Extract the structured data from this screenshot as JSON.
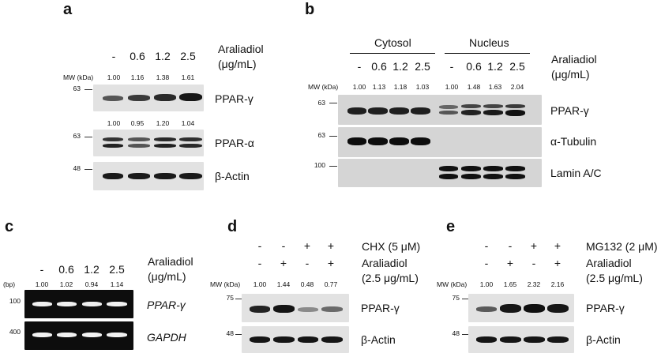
{
  "panels": {
    "a": {
      "label": "a",
      "lanes": [
        "-",
        "0.6",
        "1.2",
        "2.5"
      ],
      "treatment": [
        "Araliadiol",
        "(μg/mL)"
      ],
      "mw_header": "MW (kDa)",
      "blots": [
        {
          "name": "PPAR-γ",
          "mw": "63",
          "quant": [
            "1.00",
            "1.16",
            "1.38",
            "1.61"
          ]
        },
        {
          "name": "PPAR-α",
          "mw": "63",
          "quant": [
            "1.00",
            "0.95",
            "1.20",
            "1.04"
          ]
        },
        {
          "name": "β-Actin",
          "mw": "48"
        }
      ]
    },
    "b": {
      "label": "b",
      "groups": [
        "Cytosol",
        "Nucleus"
      ],
      "lanes": [
        "-",
        "0.6",
        "1.2",
        "2.5",
        "-",
        "0.6",
        "1.2",
        "2.5"
      ],
      "treatment": [
        "Araliadiol",
        "(μg/mL)"
      ],
      "mw_header": "MW (kDa)",
      "quant": [
        "1.00",
        "1.13",
        "1.18",
        "1.03",
        "1.00",
        "1.48",
        "1.63",
        "2.04"
      ],
      "blots": [
        {
          "name": "PPAR-γ",
          "mw": "63"
        },
        {
          "name": "α-Tubulin",
          "mw": "63"
        },
        {
          "name": "Lamin A/C",
          "mw": "100"
        }
      ]
    },
    "c": {
      "label": "c",
      "lanes": [
        "-",
        "0.6",
        "1.2",
        "2.5"
      ],
      "treatment": [
        "Araliadiol",
        "(μg/mL)"
      ],
      "mw_header": "(bp)",
      "quant": [
        "1.00",
        "1.02",
        "0.94",
        "1.14"
      ],
      "gels": [
        {
          "name": "PPAR-γ",
          "mw": "100"
        },
        {
          "name": "GAPDH",
          "mw": "400"
        }
      ]
    },
    "d": {
      "label": "d",
      "row1": {
        "signs": [
          "-",
          "-",
          "+",
          "+"
        ],
        "text": "CHX (5 μM)"
      },
      "row2": {
        "signs": [
          "-",
          "+",
          "-",
          "+"
        ],
        "text": [
          "Araliadiol",
          "(2.5 μg/mL)"
        ]
      },
      "mw_header": "MW (kDa)",
      "quant": [
        "1.00",
        "1.44",
        "0.48",
        "0.77"
      ],
      "blots": [
        {
          "name": "PPAR-γ",
          "mw": "75"
        },
        {
          "name": "β-Actin",
          "mw": "48"
        }
      ]
    },
    "e": {
      "label": "e",
      "row1": {
        "signs": [
          "-",
          "-",
          "+",
          "+"
        ],
        "text": "MG132 (2 μM)"
      },
      "row2": {
        "signs": [
          "-",
          "+",
          "-",
          "+"
        ],
        "text": [
          "Araliadiol",
          "(2.5 μg/mL)"
        ]
      },
      "mw_header": "MW (kDa)",
      "quant": [
        "1.00",
        "1.65",
        "2.32",
        "2.16"
      ],
      "blots": [
        {
          "name": "PPAR-γ",
          "mw": "75"
        },
        {
          "name": "β-Actin",
          "mw": "48"
        }
      ]
    }
  }
}
